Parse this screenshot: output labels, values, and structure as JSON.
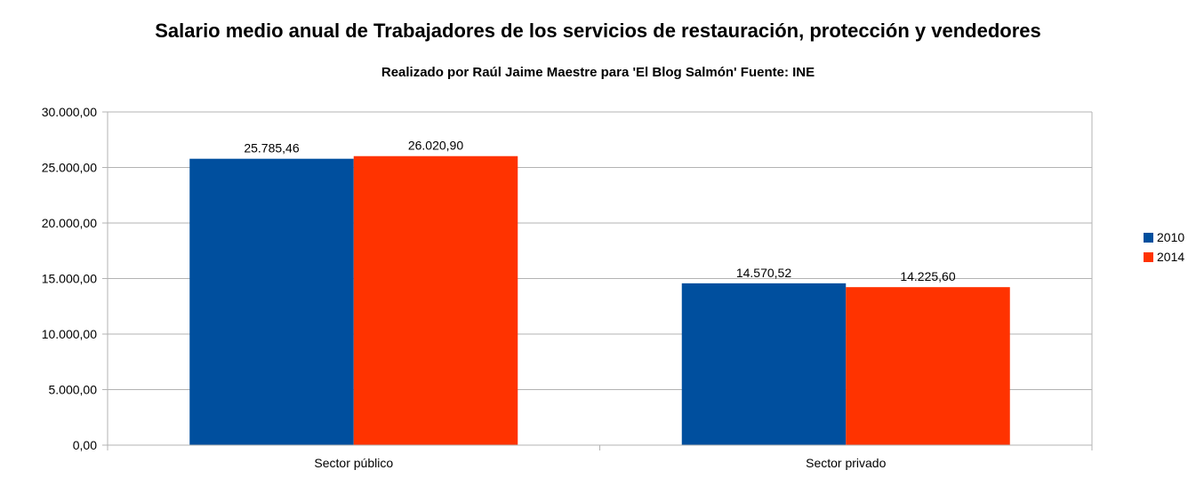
{
  "chart_data": {
    "type": "bar",
    "title": "Salario medio anual de Trabajadores de los servicios de restauración, protección y vendedores",
    "subtitle": "Realizado por Raúl Jaime Maestre para 'El Blog Salmón'      Fuente: INE",
    "xlabel": "",
    "ylabel": "",
    "categories": [
      "Sector público",
      "Sector privado"
    ],
    "series": [
      {
        "name": "2010",
        "color": "#004f9e",
        "values": [
          25785.46,
          14570.52
        ],
        "labels": [
          "25.785,46",
          "14.570,52"
        ]
      },
      {
        "name": "2014",
        "color": "#ff3300",
        "values": [
          26020.9,
          14225.6
        ],
        "labels": [
          "26.020,90",
          "14.225,60"
        ]
      }
    ],
    "ylim": [
      0,
      30000
    ],
    "yticks": [
      0,
      5000,
      10000,
      15000,
      20000,
      25000,
      30000
    ],
    "ytick_labels": [
      "0,00",
      "5.000,00",
      "10.000,00",
      "15.000,00",
      "20.000,00",
      "25.000,00",
      "30.000,00"
    ],
    "grid": true,
    "legend_position": "right"
  }
}
